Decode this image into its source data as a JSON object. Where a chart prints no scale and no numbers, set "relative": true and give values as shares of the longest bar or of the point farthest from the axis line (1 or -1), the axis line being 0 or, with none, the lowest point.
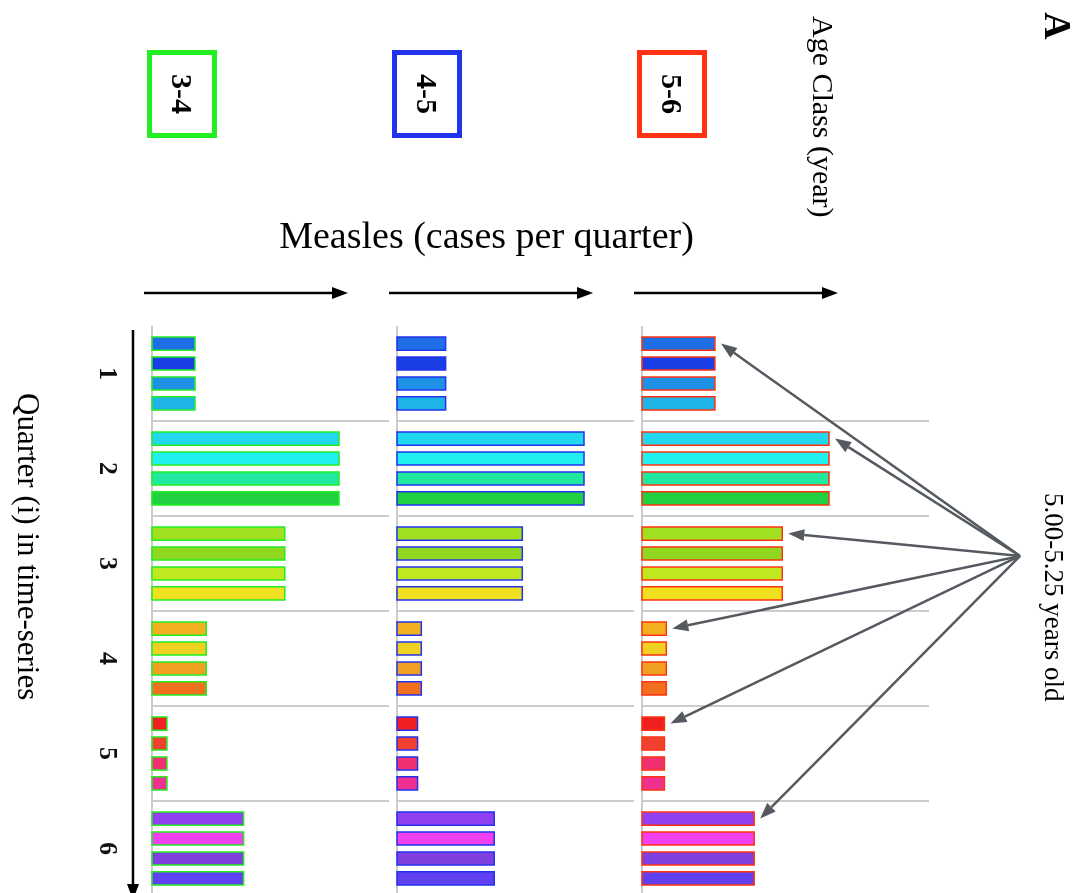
{
  "chart_data": [
    {
      "type": "bar",
      "orientation": "horizontal",
      "relative": true,
      "grid": true,
      "tick_labels": "y",
      "title": "3-4",
      "ylabel": "Quarter (i) in time-series",
      "annotations": [
        "A"
      ],
      "categories": [
        "1",
        "2",
        "3",
        "4",
        "5",
        "6"
      ],
      "series": [
        {
          "color": "#22ee22",
          "colors": [
            "#1e6ee6",
            "#22d8ee",
            "#a0e020",
            "#f0b020",
            "#f02020",
            "#9040f0"
          ],
          "values": [
            0.23,
            1,
            0.71,
            0.29,
            0.08,
            0.49
          ]
        },
        {
          "color": "#22ee22",
          "colors": [
            "#1a3ee6",
            "#20f0f0",
            "#90d820",
            "#f0d020",
            "#f04030",
            "#f040f0"
          ],
          "values": [
            0.23,
            1,
            0.71,
            0.29,
            0.08,
            0.49
          ]
        },
        {
          "color": "#22ee22",
          "colors": [
            "#1e90e6",
            "#20e8a0",
            "#c0e820",
            "#f0a020",
            "#f03070",
            "#8040e0"
          ],
          "values": [
            0.23,
            1,
            0.71,
            0.29,
            0.08,
            0.49
          ]
        },
        {
          "color": "#22ee22",
          "colors": [
            "#20b4e6",
            "#20d040",
            "#f0e020",
            "#f07020",
            "#f03090",
            "#6040f0"
          ],
          "values": [
            0.23,
            1,
            0.71,
            0.29,
            0.08,
            0.49
          ]
        }
      ]
    },
    {
      "type": "bar",
      "orientation": "horizontal",
      "relative": true,
      "grid": true,
      "tick_labels": false,
      "title": "4-5",
      "xlabel": "Measles (cases per quarter)",
      "categories": [
        "1",
        "2",
        "3",
        "4",
        "5",
        "6"
      ],
      "series": [
        {
          "color": "#2233ee",
          "colors": [
            "#1e6ee6",
            "#22d8ee",
            "#a0e020",
            "#f0b020",
            "#f02020",
            "#9040f0"
          ],
          "values": [
            0.26,
            1,
            0.67,
            0.13,
            0.11,
            0.52
          ]
        },
        {
          "color": "#2233ee",
          "colors": [
            "#1a3ee6",
            "#20f0f0",
            "#90d820",
            "#f0d020",
            "#f04030",
            "#f040f0"
          ],
          "values": [
            0.26,
            1,
            0.67,
            0.13,
            0.11,
            0.52
          ]
        },
        {
          "color": "#2233ee",
          "colors": [
            "#1e90e6",
            "#20e8a0",
            "#c0e820",
            "#f0a020",
            "#f03070",
            "#8040e0"
          ],
          "values": [
            0.26,
            1,
            0.67,
            0.13,
            0.11,
            0.52
          ]
        },
        {
          "color": "#2233ee",
          "colors": [
            "#20b4e6",
            "#20d040",
            "#f0e020",
            "#f07020",
            "#f03090",
            "#6040f0"
          ],
          "values": [
            0.26,
            1,
            0.67,
            0.13,
            0.11,
            0.52
          ]
        }
      ]
    },
    {
      "type": "bar",
      "orientation": "horizontal",
      "relative": true,
      "grid": true,
      "tick_labels": false,
      "title": "5-6",
      "annotations": [
        "Age Class (year)",
        "5.00-5.25 years old"
      ],
      "categories": [
        "1",
        "2",
        "3",
        "4",
        "5",
        "6"
      ],
      "series": [
        {
          "color": "#ff3311",
          "colors": [
            "#1e6ee6",
            "#22d8ee",
            "#a0e020",
            "#f0b020",
            "#f02020",
            "#9040f0"
          ],
          "values": [
            0.39,
            1,
            0.75,
            0.13,
            0.12,
            0.6
          ]
        },
        {
          "color": "#ff3311",
          "colors": [
            "#1a3ee6",
            "#20f0f0",
            "#90d820",
            "#f0d020",
            "#f04030",
            "#f040f0"
          ],
          "values": [
            0.39,
            1,
            0.75,
            0.13,
            0.12,
            0.6
          ]
        },
        {
          "color": "#ff3311",
          "colors": [
            "#1e90e6",
            "#20e8a0",
            "#c0e820",
            "#f0a020",
            "#f03070",
            "#8040e0"
          ],
          "values": [
            0.39,
            1,
            0.75,
            0.13,
            0.12,
            0.6
          ]
        },
        {
          "color": "#ff3311",
          "colors": [
            "#20b4e6",
            "#20d040",
            "#f0e020",
            "#f07020",
            "#f03090",
            "#6040f0"
          ],
          "values": [
            0.39,
            1,
            0.75,
            0.13,
            0.12,
            0.6
          ]
        }
      ]
    }
  ]
}
